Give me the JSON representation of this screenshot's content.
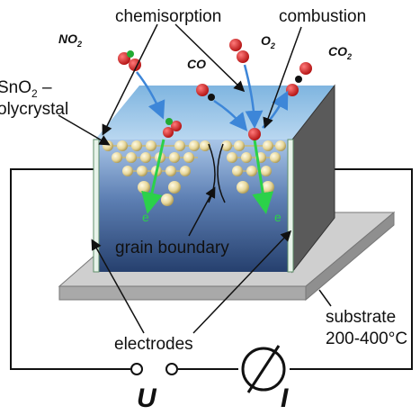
{
  "labels": {
    "chemisorption": "chemisorption",
    "combustion": "combustion",
    "sno2_line1": "SnO",
    "sno2_sub": "2",
    "sno2_dash": " –",
    "sno2_line2": "olycrystal",
    "grain_boundary": "grain boundary",
    "electrodes": "electrodes",
    "substrate": "substrate",
    "temperature": "200-400°C",
    "voltage": "U",
    "current": "I",
    "electron_left": "e",
    "electron_right": "e"
  },
  "molecules": {
    "no2": {
      "text": "NO",
      "sub": "2"
    },
    "o2": {
      "text": "O",
      "sub": "2"
    },
    "co": {
      "text": "CO"
    },
    "co2": {
      "text": "CO",
      "sub": "2"
    }
  },
  "colors": {
    "oxygen": "#cc1b1b",
    "nitrogen": "#22aa33",
    "carbon": "#111111",
    "grain": "#e7d79a",
    "arrow_blue": "#3d86d8",
    "electron_green": "#2bd14a",
    "block_top": "#7fb5e0",
    "block_bottom": "#26406e",
    "side_face": "#5a5a5a",
    "substrate": "#bdbdbd"
  }
}
